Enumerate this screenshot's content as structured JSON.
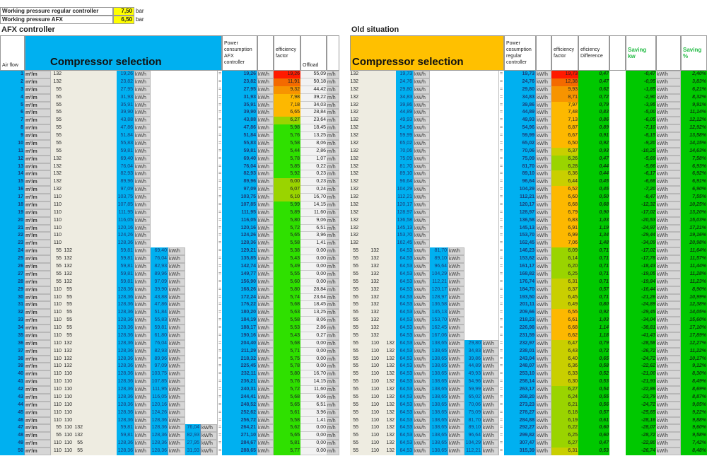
{
  "settings": [
    {
      "label": "Working pressure regular controller",
      "value": "7,50",
      "unit": "bar"
    },
    {
      "label": "Working pressure AFX",
      "value": "6,50",
      "unit": "bar"
    }
  ],
  "afx": {
    "title": "AFX controller",
    "headers": {
      "airflow": "Air flow",
      "selection": "Compressor selection",
      "power": "Power consumption AFX controller",
      "eff": "efficiency factor",
      "offload": "Offload"
    },
    "units": {
      "flow": "m³/m",
      "kw": "kW/h",
      "mh": "m/h",
      "eq": "="
    },
    "rows": [
      [
        1,
        [
          "132"
        ],
        "19,26",
        null,
        null,
        "19,26",
        "19,26",
        "55,09"
      ],
      [
        2,
        [
          "132"
        ],
        "23,82",
        null,
        null,
        "23,82",
        "11,91",
        "50,18"
      ],
      [
        3,
        [
          "55"
        ],
        "27,95",
        null,
        null,
        "27,95",
        "9,32",
        "44,42"
      ],
      [
        4,
        [
          "55"
        ],
        "31,93",
        null,
        null,
        "31,93",
        "7,98",
        "39,22"
      ],
      [
        5,
        [
          "55"
        ],
        "35,91",
        null,
        null,
        "35,91",
        "7,18",
        "34,03"
      ],
      [
        6,
        [
          "55"
        ],
        "39,90",
        null,
        null,
        "39,90",
        "6,65",
        "28,84"
      ],
      [
        7,
        [
          "55"
        ],
        "43,88",
        null,
        null,
        "43,88",
        "6,27",
        "23,64"
      ],
      [
        8,
        [
          "55"
        ],
        "47,86",
        null,
        null,
        "47,86",
        "5,98",
        "18,45"
      ],
      [
        9,
        [
          "55"
        ],
        "51,84",
        null,
        null,
        "51,84",
        "5,76",
        "13,25"
      ],
      [
        10,
        [
          "55"
        ],
        "55,83",
        null,
        null,
        "55,83",
        "5,58",
        "8,06"
      ],
      [
        11,
        [
          "55"
        ],
        "59,81",
        null,
        null,
        "59,81",
        "5,44",
        "2,86"
      ],
      [
        12,
        [
          "132"
        ],
        "69,40",
        null,
        null,
        "69,40",
        "5,78",
        "1,07"
      ],
      [
        13,
        [
          "132"
        ],
        "76,04",
        null,
        null,
        "76,04",
        "5,85",
        "0,22"
      ],
      [
        14,
        [
          "132"
        ],
        "82,93",
        null,
        null,
        "82,93",
        "5,92",
        "0,23"
      ],
      [
        15,
        [
          "132"
        ],
        "89,96",
        null,
        null,
        "89,96",
        "6,00",
        "0,23"
      ],
      [
        16,
        [
          "132"
        ],
        "97,09",
        null,
        null,
        "97,09",
        "6,07",
        "0,24"
      ],
      [
        17,
        [
          "110"
        ],
        "103,75",
        null,
        null,
        "103,75",
        "6,10",
        "16,70"
      ],
      [
        18,
        [
          "110"
        ],
        "107,85",
        null,
        null,
        "107,85",
        "5,99",
        "14,15"
      ],
      [
        19,
        [
          "110"
        ],
        "111,95",
        null,
        null,
        "111,95",
        "5,89",
        "11,60"
      ],
      [
        20,
        [
          "110"
        ],
        "116,05",
        null,
        null,
        "116,05",
        "5,80",
        "9,06"
      ],
      [
        21,
        [
          "110"
        ],
        "120,16",
        null,
        null,
        "120,16",
        "5,72",
        "6,51"
      ],
      [
        22,
        [
          "110"
        ],
        "124,26",
        null,
        null,
        "124,26",
        "5,65",
        "3,96"
      ],
      [
        23,
        [
          "110"
        ],
        "128,36",
        null,
        null,
        "128,36",
        "5,58",
        "1,41"
      ],
      [
        24,
        [
          "55",
          "132"
        ],
        "59,81",
        "69,40",
        null,
        "129,21",
        "5,38",
        "0,00"
      ],
      [
        25,
        [
          "55",
          "132"
        ],
        "59,81",
        "76,04",
        null,
        "135,85",
        "5,43",
        "0,00"
      ],
      [
        26,
        [
          "55",
          "132"
        ],
        "59,81",
        "82,93",
        null,
        "142,74",
        "5,49",
        "0,00"
      ],
      [
        27,
        [
          "55",
          "132"
        ],
        "59,81",
        "89,96",
        null,
        "149,77",
        "5,55",
        "0,00"
      ],
      [
        28,
        [
          "55",
          "132"
        ],
        "59,81",
        "97,09",
        null,
        "156,90",
        "5,60",
        "0,00"
      ],
      [
        29,
        [
          "110",
          "55"
        ],
        "128,36",
        "39,90",
        null,
        "168,26",
        "5,80",
        "28,84"
      ],
      [
        30,
        [
          "110",
          "55"
        ],
        "128,36",
        "43,88",
        null,
        "172,24",
        "5,74",
        "23,64"
      ],
      [
        31,
        [
          "110",
          "55"
        ],
        "128,36",
        "47,86",
        null,
        "176,22",
        "5,68",
        "18,45"
      ],
      [
        32,
        [
          "110",
          "55"
        ],
        "128,36",
        "51,84",
        null,
        "180,20",
        "5,63",
        "13,25"
      ],
      [
        33,
        [
          "110",
          "55"
        ],
        "128,36",
        "55,83",
        null,
        "184,19",
        "5,58",
        "8,06"
      ],
      [
        34,
        [
          "110",
          "55"
        ],
        "128,36",
        "59,81",
        null,
        "188,17",
        "5,53",
        "2,86"
      ],
      [
        35,
        [
          "110",
          "55"
        ],
        "128,36",
        "61,80",
        null,
        "190,16",
        "5,43",
        "0,27"
      ],
      [
        36,
        [
          "110",
          "132"
        ],
        "128,36",
        "76,04",
        null,
        "204,40",
        "5,68",
        "0,00"
      ],
      [
        37,
        [
          "110",
          "132"
        ],
        "128,36",
        "82,93",
        null,
        "211,29",
        "5,71",
        "0,00"
      ],
      [
        38,
        [
          "110",
          "132"
        ],
        "128,36",
        "89,96",
        null,
        "218,32",
        "5,75",
        "0,00"
      ],
      [
        39,
        [
          "110",
          "132"
        ],
        "128,36",
        "97,09",
        null,
        "225,45",
        "5,78",
        "0,00"
      ],
      [
        40,
        [
          "110",
          "110"
        ],
        "128,36",
        "103,75",
        null,
        "232,11",
        "5,80",
        "16,70"
      ],
      [
        41,
        [
          "110",
          "110"
        ],
        "128,36",
        "107,85",
        null,
        "236,21",
        "5,76",
        "14,15"
      ],
      [
        42,
        [
          "110",
          "110"
        ],
        "128,36",
        "111,95",
        null,
        "240,31",
        "5,72",
        "11,60"
      ],
      [
        43,
        [
          "110",
          "110"
        ],
        "128,36",
        "116,05",
        null,
        "244,41",
        "5,68",
        "9,06"
      ],
      [
        44,
        [
          "110",
          "110"
        ],
        "128,36",
        "120,16",
        null,
        "248,52",
        "5,65",
        "6,51"
      ],
      [
        45,
        [
          "110",
          "110"
        ],
        "128,36",
        "124,26",
        null,
        "252,62",
        "5,61",
        "3,96"
      ],
      [
        46,
        [
          "110",
          "110"
        ],
        "128,36",
        "128,36",
        null,
        "256,72",
        "5,58",
        "1,41"
      ],
      [
        47,
        [
          "55",
          "110",
          "132"
        ],
        "59,81",
        "128,36",
        "76,04",
        "264,21",
        "5,62",
        "0,00"
      ],
      [
        48,
        [
          "55",
          "110",
          "132"
        ],
        "59,81",
        "128,36",
        "82,93",
        "271,10",
        "5,65",
        "0,00"
      ],
      [
        49,
        [
          "110",
          "110",
          "55"
        ],
        "128,36",
        "128,36",
        "27,95",
        "284,67",
        "5,81",
        "0,00"
      ],
      [
        50,
        [
          "110",
          "110",
          "55"
        ],
        "128,36",
        "128,36",
        "31,93",
        "288,65",
        "5,77",
        "0,00"
      ]
    ]
  },
  "old": {
    "title": "Old situation",
    "headers": {
      "selection": "Compressor selection",
      "power": "Power cosumption regular controller",
      "eff": "efficiency factor",
      "diff": "eficiency Difference",
      "saving_kw": "Saving kw",
      "saving_pct": "Saving %"
    },
    "units": {
      "kw": "kW/h",
      "eq": "="
    },
    "rows": [
      [
        [
          "132"
        ],
        "19,73",
        null,
        null,
        "19,73",
        "19,73",
        "0,47",
        "-0,47",
        "2,40%"
      ],
      [
        [
          "132"
        ],
        "24,76",
        null,
        null,
        "24,76",
        "12,38",
        "0,47",
        "-0,95",
        "3,83%"
      ],
      [
        [
          "132"
        ],
        "29,80",
        null,
        null,
        "29,80",
        "9,93",
        "0,62",
        "-1,85",
        "6,21%"
      ],
      [
        [
          "132"
        ],
        "34,83",
        null,
        null,
        "34,83",
        "8,71",
        "0,72",
        "-2,90",
        "8,32%"
      ],
      [
        [
          "132"
        ],
        "39,86",
        null,
        null,
        "39,86",
        "7,97",
        "0,79",
        "-3,95",
        "9,91%"
      ],
      [
        [
          "132"
        ],
        "44,89",
        null,
        null,
        "44,89",
        "7,48",
        "0,83",
        "-5,00",
        "11,14%"
      ],
      [
        [
          "132"
        ],
        "49,93",
        null,
        null,
        "49,93",
        "7,13",
        "0,86",
        "-6,05",
        "12,12%"
      ],
      [
        [
          "132"
        ],
        "54,96",
        null,
        null,
        "54,96",
        "6,87",
        "0,89",
        "-7,10",
        "12,92%"
      ],
      [
        [
          "132"
        ],
        "59,99",
        null,
        null,
        "59,99",
        "6,67",
        "0,91",
        "-8,15",
        "13,58%"
      ],
      [
        [
          "132"
        ],
        "65,02",
        null,
        null,
        "65,02",
        "6,50",
        "0,92",
        "-9,20",
        "14,15%"
      ],
      [
        [
          "132"
        ],
        "70,06",
        null,
        null,
        "70,06",
        "6,37",
        "0,93",
        "-10,25",
        "14,63%"
      ],
      [
        [
          "132"
        ],
        "75,09",
        null,
        null,
        "75,09",
        "6,26",
        "0,47",
        "-5,69",
        "7,58%"
      ],
      [
        [
          "132"
        ],
        "81,70",
        null,
        null,
        "81,70",
        "6,28",
        "0,44",
        "-5,66",
        "6,93%"
      ],
      [
        [
          "132"
        ],
        "89,10",
        null,
        null,
        "89,10",
        "6,36",
        "0,44",
        "-6,17",
        "6,92%"
      ],
      [
        [
          "132"
        ],
        "96,64",
        null,
        null,
        "96,64",
        "6,44",
        "0,45",
        "-6,68",
        "6,91%"
      ],
      [
        [
          "132"
        ],
        "104,29",
        null,
        null,
        "104,29",
        "6,52",
        "0,45",
        "-7,20",
        "6,90%"
      ],
      [
        [
          "132"
        ],
        "112,21",
        null,
        null,
        "112,21",
        "6,60",
        "0,50",
        "-8,47",
        "7,55%"
      ],
      [
        [
          "132"
        ],
        "120,17",
        null,
        null,
        "120,17",
        "6,68",
        "0,68",
        "-12,32",
        "10,25%"
      ],
      [
        [
          "132"
        ],
        "128,97",
        null,
        null,
        "128,97",
        "6,79",
        "0,90",
        "-17,02",
        "13,20%"
      ],
      [
        [
          "132"
        ],
        "136,58",
        null,
        null,
        "136,58",
        "6,83",
        "1,03",
        "-20,53",
        "15,03%"
      ],
      [
        [
          "132"
        ],
        "145,13",
        null,
        null,
        "145,13",
        "6,91",
        "1,19",
        "-24,97",
        "17,21%"
      ],
      [
        [
          "132"
        ],
        "153,70",
        null,
        null,
        "153,70",
        "6,99",
        "1,34",
        "-29,44",
        "19,16%"
      ],
      [
        [
          "132"
        ],
        "162,45",
        null,
        null,
        "162,45",
        "7,06",
        "1,48",
        "-34,09",
        "20,98%"
      ],
      [
        [
          "55",
          "132"
        ],
        "64,53",
        "81,70",
        null,
        "146,23",
        "6,09",
        "0,71",
        "-17,02",
        "11,64%"
      ],
      [
        [
          "55",
          "132"
        ],
        "64,53",
        "89,10",
        null,
        "153,62",
        "6,14",
        "0,71",
        "-17,78",
        "11,57%"
      ],
      [
        [
          "55",
          "132"
        ],
        "64,53",
        "96,64",
        null,
        "161,17",
        "6,20",
        "0,71",
        "-18,43",
        "11,44%"
      ],
      [
        [
          "55",
          "132"
        ],
        "64,53",
        "104,29",
        null,
        "168,82",
        "6,25",
        "0,71",
        "-19,05",
        "11,28%"
      ],
      [
        [
          "55",
          "132"
        ],
        "64,53",
        "112,21",
        null,
        "176,74",
        "6,31",
        "0,71",
        "-19,84",
        "11,23%"
      ],
      [
        [
          "55",
          "132"
        ],
        "64,53",
        "120,17",
        null,
        "184,70",
        "6,37",
        "0,57",
        "-16,44",
        "8,90%"
      ],
      [
        [
          "55",
          "132"
        ],
        "64,53",
        "128,97",
        null,
        "193,50",
        "6,45",
        "0,71",
        "-21,26",
        "10,99%"
      ],
      [
        [
          "55",
          "132"
        ],
        "64,53",
        "136,58",
        null,
        "201,11",
        "6,49",
        "0,80",
        "-24,89",
        "12,38%"
      ],
      [
        [
          "55",
          "132"
        ],
        "64,53",
        "145,13",
        null,
        "209,66",
        "6,55",
        "0,92",
        "-29,45",
        "14,05%"
      ],
      [
        [
          "55",
          "132"
        ],
        "64,53",
        "153,70",
        null,
        "218,23",
        "6,61",
        "1,03",
        "-34,04",
        "15,60%"
      ],
      [
        [
          "55",
          "132"
        ],
        "64,53",
        "162,45",
        null,
        "226,98",
        "6,68",
        "1,14",
        "-38,81",
        "17,10%"
      ],
      [
        [
          "55",
          "132"
        ],
        "64,53",
        "167,06",
        null,
        "231,59",
        "6,62",
        "1,18",
        "-41,43",
        "17,89%"
      ],
      [
        [
          "55",
          "110",
          "132"
        ],
        "64,53",
        "138,65",
        "29,80",
        "232,97",
        "6,47",
        "0,79",
        "-28,58",
        "12,27%"
      ],
      [
        [
          "55",
          "110",
          "132"
        ],
        "64,53",
        "138,65",
        "34,83",
        "238,01",
        "6,43",
        "0,72",
        "-26,72",
        "11,22%"
      ],
      [
        [
          "55",
          "110",
          "132"
        ],
        "64,53",
        "138,65",
        "39,86",
        "243,04",
        "6,40",
        "0,65",
        "-24,72",
        "10,17%"
      ],
      [
        [
          "55",
          "110",
          "132"
        ],
        "64,53",
        "138,65",
        "44,89",
        "248,07",
        "6,36",
        "0,58",
        "-22,62",
        "9,12%"
      ],
      [
        [
          "55",
          "110",
          "132"
        ],
        "64,53",
        "138,65",
        "49,93",
        "253,10",
        "6,33",
        "0,52",
        "-21,00",
        "8,30%"
      ],
      [
        [
          "55",
          "110",
          "132"
        ],
        "64,53",
        "138,65",
        "54,96",
        "258,14",
        "6,30",
        "0,53",
        "-21,93",
        "8,49%"
      ],
      [
        [
          "55",
          "110",
          "132"
        ],
        "64,53",
        "138,65",
        "59,99",
        "263,17",
        "6,27",
        "0,54",
        "-22,86",
        "8,69%"
      ],
      [
        [
          "55",
          "110",
          "132"
        ],
        "64,53",
        "138,65",
        "65,02",
        "268,20",
        "6,24",
        "0,55",
        "-23,79",
        "8,87%"
      ],
      [
        [
          "55",
          "110",
          "132"
        ],
        "64,53",
        "138,65",
        "70,06",
        "273,23",
        "6,21",
        "0,56",
        "-24,72",
        "9,05%"
      ],
      [
        [
          "55",
          "110",
          "132"
        ],
        "64,53",
        "138,65",
        "75,09",
        "278,27",
        "6,18",
        "0,57",
        "-25,65",
        "9,22%"
      ],
      [
        [
          "55",
          "110",
          "132"
        ],
        "64,53",
        "138,65",
        "81,70",
        "284,88",
        "6,19",
        "0,61",
        "-28,16",
        "9,88%"
      ],
      [
        [
          "55",
          "110",
          "132"
        ],
        "64,53",
        "138,65",
        "89,10",
        "292,27",
        "6,22",
        "0,60",
        "-28,07",
        "9,60%"
      ],
      [
        [
          "55",
          "110",
          "132"
        ],
        "64,53",
        "138,65",
        "96,64",
        "299,82",
        "6,25",
        "0,60",
        "-28,72",
        "9,58%"
      ],
      [
        [
          "55",
          "110",
          "132"
        ],
        "64,53",
        "138,65",
        "104,29",
        "307,47",
        "6,27",
        "0,47",
        "-22,80",
        "7,42%"
      ],
      [
        [
          "55",
          "110",
          "132"
        ],
        "64,53",
        "138,65",
        "112,21",
        "315,39",
        "6,31",
        "0,53",
        "-26,74",
        "8,48%"
      ]
    ]
  },
  "colors": {
    "blue": "#00b0f0",
    "orange": "#ffc000",
    "yellow": "#ffff00",
    "green": "#00c800"
  }
}
